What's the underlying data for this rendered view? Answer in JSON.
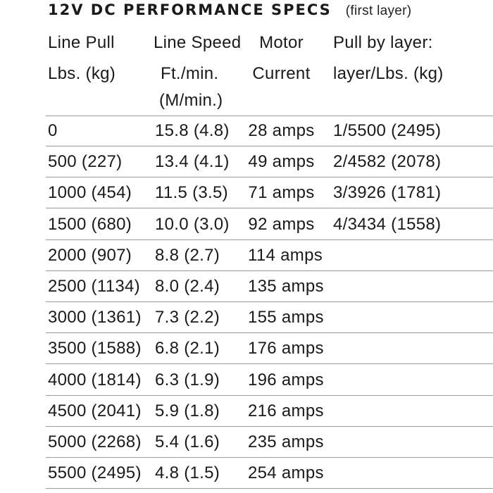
{
  "title": {
    "main": "12V DC PERFORMANCE SPECS",
    "sub": "(first layer)"
  },
  "headers": {
    "row1": [
      "Line Pull",
      "Line Speed",
      "Motor",
      "Pull by layer:"
    ],
    "row2": [
      "Lbs. (kg)",
      "Ft./min.",
      "Current",
      "layer/Lbs. (kg)"
    ],
    "row3": [
      "",
      "(M/min.)",
      "",
      ""
    ]
  },
  "rows": [
    [
      "0",
      "15.8 (4.8)",
      "28 amps",
      "1/5500 (2495)"
    ],
    [
      "500 (227)",
      "13.4 (4.1)",
      "49 amps",
      "2/4582 (2078)"
    ],
    [
      "1000 (454)",
      "11.5 (3.5)",
      "71 amps",
      "3/3926 (1781)"
    ],
    [
      "1500 (680)",
      "10.0 (3.0)",
      "92 amps",
      "4/3434 (1558)"
    ],
    [
      "2000 (907)",
      "8.8 (2.7)",
      "114 amps",
      ""
    ],
    [
      "2500 (1134)",
      "8.0 (2.4)",
      "135 amps",
      ""
    ],
    [
      "3000 (1361)",
      "7.3 (2.2)",
      "155 amps",
      ""
    ],
    [
      "3500 (1588)",
      "6.8 (2.1)",
      "176 amps",
      ""
    ],
    [
      "4000 (1814)",
      "6.3 (1.9)",
      "196 amps",
      ""
    ],
    [
      "4500 (2041)",
      "5.9 (1.8)",
      "216 amps",
      ""
    ],
    [
      "5000 (2268)",
      "5.4 (1.6)",
      "235 amps",
      ""
    ],
    [
      "5500 (2495)",
      "4.8 (1.5)",
      "254 amps",
      ""
    ]
  ]
}
